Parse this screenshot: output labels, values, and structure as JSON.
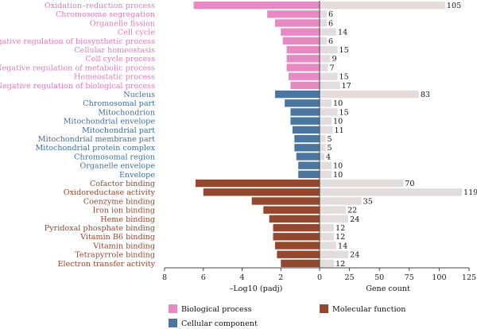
{
  "chart_data": {
    "type": "bar",
    "categories": [
      "Oxidation–reduction process",
      "Chromosome segregation",
      "Organelle fission",
      "Cell cycle",
      "Negative regulation of biosynthetic process",
      "Cellular homeostasis",
      "Cell cycle process",
      "Negative regulation of metabolic process",
      "Homeostatic process",
      "Negative regulation of biological process",
      "Nucleus",
      "Chromosomal part",
      "Mitochondrion",
      "Mitochondrial envelope",
      "Mitochondrial part",
      "Mitochondrial membrane part",
      "Mitochondrial protein complex",
      "Chromosomal region",
      "Organelle envelope",
      "Envelope",
      "Cofactor binding",
      "Oxidoreductase activity",
      "Coenzyme binding",
      "Iron ion binding",
      "Heme binding",
      "Pyridoxal phosphate binding",
      "Vitamin B6 binding",
      "Vitamin binding",
      "Tetrapyrrole binding",
      "Electron transfer activity"
    ],
    "groups": [
      "bp",
      "bp",
      "bp",
      "bp",
      "bp",
      "bp",
      "bp",
      "bp",
      "bp",
      "bp",
      "cc",
      "cc",
      "cc",
      "cc",
      "cc",
      "cc",
      "cc",
      "cc",
      "cc",
      "cc",
      "mf",
      "mf",
      "mf",
      "mf",
      "mf",
      "mf",
      "mf",
      "mf",
      "mf",
      "mf"
    ],
    "series": [
      {
        "name": "–Log10 (padj)",
        "values": [
          6.5,
          2.7,
          2.3,
          2.0,
          1.9,
          1.7,
          1.7,
          1.7,
          1.6,
          1.5,
          2.3,
          1.8,
          1.5,
          1.5,
          1.4,
          1.3,
          1.3,
          1.2,
          1.1,
          1.1,
          6.4,
          6.0,
          3.5,
          2.9,
          2.6,
          2.4,
          2.4,
          2.3,
          2.2,
          2.0
        ]
      },
      {
        "name": "Gene count",
        "values": [
          105,
          6,
          6,
          14,
          6,
          15,
          9,
          7,
          15,
          17,
          83,
          10,
          15,
          10,
          11,
          5,
          5,
          4,
          10,
          10,
          70,
          119,
          35,
          22,
          24,
          12,
          12,
          14,
          24,
          12
        ]
      }
    ],
    "count_labels": [
      "105",
      "6",
      "6",
      "14",
      "6",
      "15",
      "9",
      "7",
      "15",
      "17",
      "83",
      "10",
      "15",
      "10",
      "11",
      "5",
      "5",
      "4",
      "10",
      "10",
      "70",
      "119",
      "35",
      "22",
      "24",
      "12",
      "12",
      "14",
      "24",
      "12"
    ],
    "left_axis": {
      "label": "–Log10 (padj)",
      "range": [
        8,
        0
      ],
      "ticks": [
        "8",
        "6",
        "4",
        "2",
        "0"
      ]
    },
    "right_axis": {
      "label": "Gene count",
      "range": [
        0,
        125
      ],
      "ticks": [
        "0",
        "25",
        "50",
        "75",
        "100",
        "125"
      ]
    },
    "legend": [
      {
        "key": "bp",
        "label": "Biological process"
      },
      {
        "key": "cc",
        "label": "Cellular component"
      },
      {
        "key": "mf",
        "label": "Molecular function"
      }
    ],
    "legend_position": "bottom",
    "colors": {
      "bp_bar": "#e78ac3",
      "bp_text": "#e07ab8",
      "cc_bar": "#4a76a0",
      "cc_text": "#3f6e9a",
      "mf_bar": "#93472d",
      "mf_text": "#93472d",
      "count_bar": "#e2dcdc",
      "axis": "#444444"
    }
  }
}
